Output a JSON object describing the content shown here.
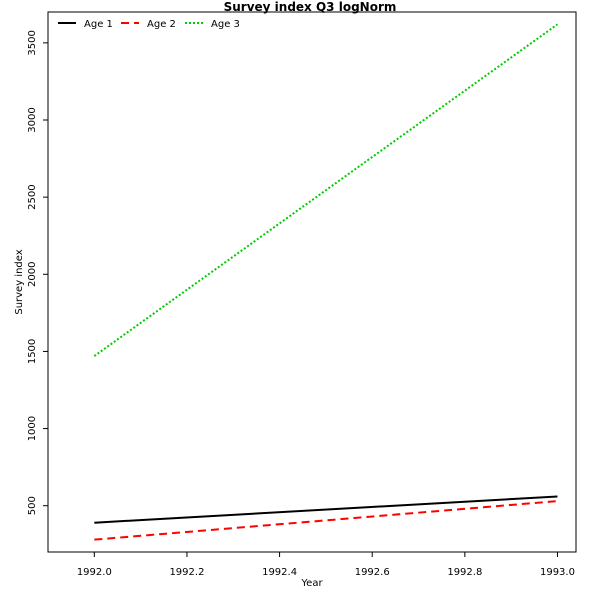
{
  "chart_data": {
    "type": "line",
    "title": "Survey index Q3 logNorm",
    "xlabel": "Year",
    "ylabel": "Survey index",
    "xlim": [
      1991.9,
      1993.04
    ],
    "ylim": [
      200,
      3700
    ],
    "xticks": [
      1992.0,
      1992.2,
      1992.4,
      1992.6,
      1992.8,
      1993.0
    ],
    "xtick_labels": [
      "1992.0",
      "1992.2",
      "1992.4",
      "1992.6",
      "1992.8",
      "1993.0"
    ],
    "yticks": [
      500,
      1000,
      1500,
      2000,
      2500,
      3000,
      3500
    ],
    "ytick_labels": [
      "500",
      "1000",
      "1500",
      "2000",
      "2500",
      "3000",
      "3500"
    ],
    "grid": false,
    "legend_position": "top-left",
    "x": [
      1992.0,
      1993.0
    ],
    "series": [
      {
        "name": "Age 1",
        "values": [
          390,
          560
        ],
        "color": "#000000",
        "dash": "solid"
      },
      {
        "name": "Age 2",
        "values": [
          280,
          530
        ],
        "color": "#ff0000",
        "dash": "dashed"
      },
      {
        "name": "Age 3",
        "values": [
          1470,
          3620
        ],
        "color": "#00cc00",
        "dash": "dotted"
      }
    ]
  }
}
